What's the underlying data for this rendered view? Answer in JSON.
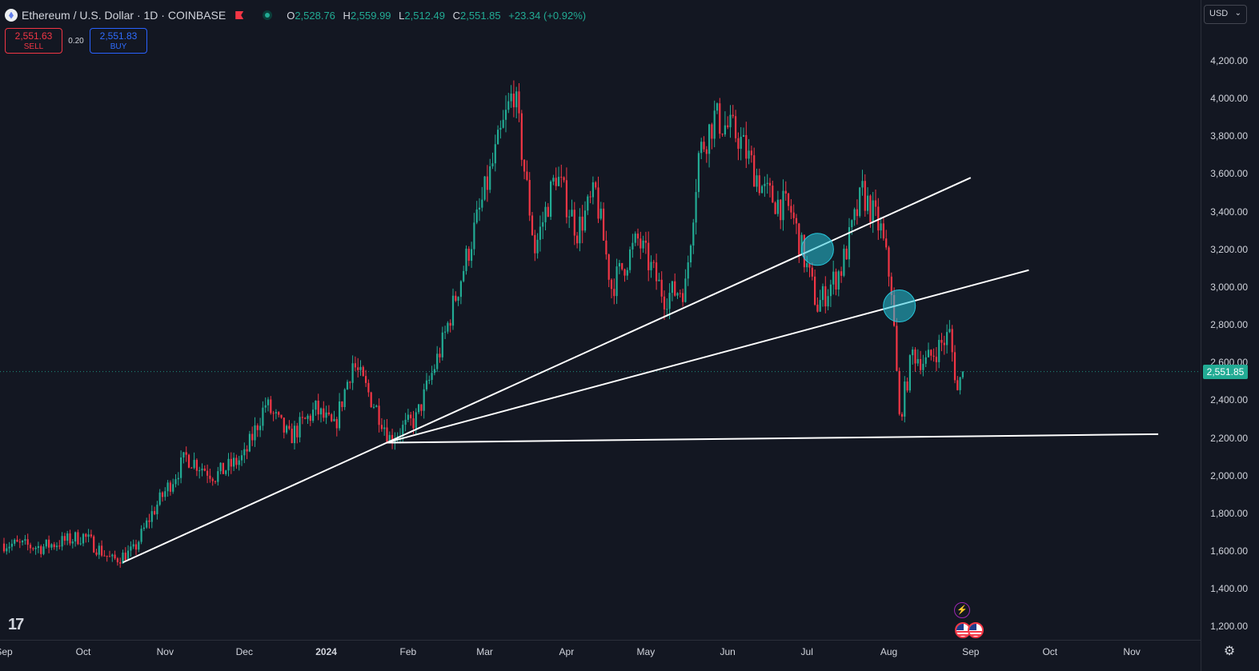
{
  "header": {
    "title": "Ethereum / U.S. Dollar · 1D · COINBASE",
    "ohlc": [
      {
        "key": "O",
        "value": "2,528.76"
      },
      {
        "key": "H",
        "value": "2,559.99"
      },
      {
        "key": "L",
        "value": "2,512.49"
      },
      {
        "key": "C",
        "value": "2,551.85"
      }
    ],
    "change": "+23.34 (+0.92%)",
    "icons": {
      "symbol": "ethereum-icon",
      "flag": "flag-icon",
      "status": "market-open-dot"
    }
  },
  "trade": {
    "sell_price": "2,551.63",
    "sell_label": "SELL",
    "spread": "0.20",
    "buy_price": "2,551.83",
    "buy_label": "BUY"
  },
  "price_axis": {
    "currency": "USD",
    "labels": [
      "4,200.00",
      "4,000.00",
      "3,800.00",
      "3,600.00",
      "3,400.00",
      "3,200.00",
      "3,000.00",
      "2,800.00",
      "2,600.00",
      "2,400.00",
      "2,200.00",
      "2,000.00",
      "1,800.00",
      "1,600.00",
      "1,400.00",
      "1,200.00"
    ],
    "current_price": "2,551.85",
    "current_value": 2551.85
  },
  "time_axis": {
    "labels": [
      "Sep",
      "Oct",
      "Nov",
      "Dec",
      "2024",
      "Feb",
      "Mar",
      "Apr",
      "May",
      "Jun",
      "Jul",
      "Aug",
      "Sep",
      "Oct",
      "Nov"
    ]
  },
  "colors": {
    "background": "#131722",
    "up": "#22ab94",
    "down": "#f23645",
    "trendline": "#ffffff",
    "marker": "#26c6da"
  },
  "chart_data": {
    "type": "candlestick",
    "symbol": "ETHUSD",
    "interval": "1D",
    "ylim": [
      1200,
      4300
    ],
    "close_path": [
      [
        "2023-09-01",
        1640
      ],
      [
        "2023-09-15",
        1620
      ],
      [
        "2023-10-01",
        1680
      ],
      [
        "2023-10-12",
        1550
      ],
      [
        "2023-10-20",
        1600
      ],
      [
        "2023-10-27",
        1800
      ],
      [
        "2023-11-09",
        2100
      ],
      [
        "2023-11-20",
        2000
      ],
      [
        "2023-12-01",
        2100
      ],
      [
        "2023-12-09",
        2380
      ],
      [
        "2023-12-18",
        2200
      ],
      [
        "2023-12-28",
        2350
      ],
      [
        "2024-01-04",
        2250
      ],
      [
        "2024-01-11",
        2600
      ],
      [
        "2024-01-22",
        2300
      ],
      [
        "2024-01-25",
        2200
      ],
      [
        "2024-02-04",
        2300
      ],
      [
        "2024-02-14",
        2700
      ],
      [
        "2024-02-28",
        3400
      ],
      [
        "2024-03-12",
        4050
      ],
      [
        "2024-03-20",
        3200
      ],
      [
        "2024-03-28",
        3600
      ],
      [
        "2024-04-05",
        3300
      ],
      [
        "2024-04-12",
        3500
      ],
      [
        "2024-04-18",
        3000
      ],
      [
        "2024-04-28",
        3250
      ],
      [
        "2024-05-08",
        2950
      ],
      [
        "2024-05-16",
        3000
      ],
      [
        "2024-05-21",
        3700
      ],
      [
        "2024-05-27",
        3900
      ],
      [
        "2024-06-05",
        3800
      ],
      [
        "2024-06-15",
        3500
      ],
      [
        "2024-06-25",
        3400
      ],
      [
        "2024-07-05",
        2900
      ],
      [
        "2024-07-14",
        3100
      ],
      [
        "2024-07-22",
        3500
      ],
      [
        "2024-07-29",
        3300
      ],
      [
        "2024-08-02",
        3000
      ],
      [
        "2024-08-05",
        2300
      ],
      [
        "2024-08-10",
        2650
      ],
      [
        "2024-08-15",
        2600
      ],
      [
        "2024-08-24",
        2750
      ],
      [
        "2024-08-27",
        2450
      ],
      [
        "2024-08-29",
        2551.85
      ]
    ],
    "trendlines": [
      {
        "from": [
          "2023-10-16",
          1540
        ],
        "to": [
          "2024-09-01",
          3580
        ]
      },
      {
        "from": [
          "2024-01-25",
          2180
        ],
        "to": [
          "2024-09-23",
          3090
        ]
      },
      {
        "from": [
          "2024-01-24",
          2175
        ],
        "to": [
          "2024-11-11",
          2220
        ]
      }
    ],
    "markers": [
      {
        "date": "2024-07-05",
        "value": 3200
      },
      {
        "date": "2024-08-05",
        "value": 2900
      }
    ]
  }
}
